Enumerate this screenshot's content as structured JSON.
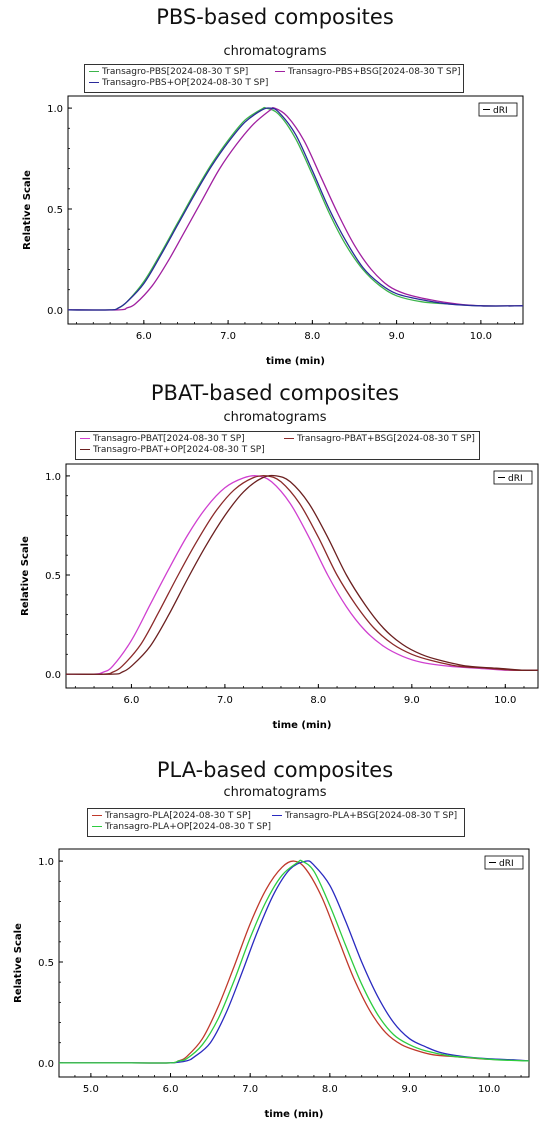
{
  "chart_data": [
    {
      "type": "line",
      "title": "PBS-based composites",
      "subtitle": "chromatograms",
      "xlabel": "time (min)",
      "ylabel": "Relative Scale",
      "xlim": [
        5.1,
        10.5
      ],
      "ylim": [
        0,
        1.0
      ],
      "xticks": [
        "6.0",
        "7.0",
        "8.0",
        "9.0",
        "10.0"
      ],
      "yticks": [
        "0.0",
        "0.5",
        "1.0"
      ],
      "detector_label": "dRI",
      "series": [
        {
          "name": "Transagro-PBS[2024-08-30 T SP]",
          "color": "#3cb44b",
          "x": [
            5.1,
            5.6,
            5.7,
            5.8,
            6.0,
            6.2,
            6.4,
            6.6,
            6.8,
            7.0,
            7.2,
            7.4,
            7.45,
            7.6,
            7.8,
            8.0,
            8.2,
            8.4,
            8.6,
            8.8,
            9.0,
            9.3,
            9.6,
            10.0,
            10.5
          ],
          "y": [
            0.0,
            0.0,
            0.01,
            0.04,
            0.14,
            0.28,
            0.43,
            0.58,
            0.72,
            0.84,
            0.94,
            0.995,
            1.0,
            0.97,
            0.85,
            0.67,
            0.48,
            0.32,
            0.2,
            0.12,
            0.07,
            0.04,
            0.03,
            0.02,
            0.02
          ]
        },
        {
          "name": "Transagro-PBS+BSG[2024-08-30 T SP]",
          "color": "#a020a0",
          "x": [
            5.1,
            5.7,
            5.8,
            5.9,
            6.1,
            6.3,
            6.5,
            6.7,
            6.9,
            7.1,
            7.3,
            7.5,
            7.55,
            7.7,
            7.9,
            8.1,
            8.3,
            8.5,
            8.7,
            8.9,
            9.1,
            9.4,
            9.7,
            10.0,
            10.5
          ],
          "y": [
            0.0,
            0.0,
            0.01,
            0.03,
            0.12,
            0.25,
            0.4,
            0.55,
            0.7,
            0.82,
            0.92,
            0.99,
            1.0,
            0.96,
            0.84,
            0.66,
            0.48,
            0.32,
            0.2,
            0.12,
            0.08,
            0.05,
            0.03,
            0.02,
            0.02
          ]
        },
        {
          "name": "Transagro-PBS+OP[2024-08-30 T SP]",
          "color": "#2a2a9a",
          "x": [
            5.1,
            5.6,
            5.7,
            5.8,
            6.0,
            6.2,
            6.4,
            6.6,
            6.8,
            7.0,
            7.2,
            7.4,
            7.5,
            7.6,
            7.8,
            8.0,
            8.2,
            8.4,
            8.6,
            8.8,
            9.0,
            9.3,
            9.6,
            10.0,
            10.5
          ],
          "y": [
            0.0,
            0.0,
            0.01,
            0.04,
            0.13,
            0.27,
            0.42,
            0.57,
            0.71,
            0.83,
            0.93,
            0.99,
            1.0,
            0.98,
            0.87,
            0.69,
            0.5,
            0.34,
            0.21,
            0.13,
            0.08,
            0.05,
            0.03,
            0.02,
            0.02
          ]
        }
      ]
    },
    {
      "type": "line",
      "title": "PBAT-based composites",
      "subtitle": "chromatograms",
      "xlabel": "time (min)",
      "ylabel": "Relative Scale",
      "xlim": [
        5.3,
        10.35
      ],
      "ylim": [
        0,
        1.0
      ],
      "xticks": [
        "6.0",
        "7.0",
        "8.0",
        "9.0",
        "10.0"
      ],
      "yticks": [
        "0.0",
        "0.5",
        "1.0"
      ],
      "detector_label": "dRI",
      "series": [
        {
          "name": "Transagro-PBAT[2024-08-30 T SP]",
          "color": "#d040d0",
          "x": [
            5.3,
            5.6,
            5.7,
            5.8,
            6.0,
            6.2,
            6.4,
            6.6,
            6.8,
            7.0,
            7.2,
            7.35,
            7.5,
            7.7,
            7.9,
            8.1,
            8.3,
            8.5,
            8.7,
            8.9,
            9.1,
            9.4,
            9.7,
            10.0,
            10.35
          ],
          "y": [
            0.0,
            0.0,
            0.01,
            0.04,
            0.17,
            0.35,
            0.53,
            0.7,
            0.84,
            0.94,
            0.99,
            1.0,
            0.97,
            0.86,
            0.69,
            0.5,
            0.34,
            0.22,
            0.14,
            0.09,
            0.06,
            0.04,
            0.03,
            0.02,
            0.02
          ]
        },
        {
          "name": "Transagro-PBAT+BSG[2024-08-30 T SP]",
          "color": "#8b2a2a",
          "x": [
            5.3,
            5.7,
            5.8,
            5.9,
            6.1,
            6.3,
            6.5,
            6.7,
            6.9,
            7.1,
            7.3,
            7.45,
            7.6,
            7.8,
            8.0,
            8.2,
            8.4,
            8.6,
            8.8,
            9.0,
            9.2,
            9.5,
            9.8,
            10.1,
            10.35
          ],
          "y": [
            0.0,
            0.0,
            0.01,
            0.04,
            0.15,
            0.32,
            0.5,
            0.67,
            0.82,
            0.93,
            0.99,
            1.0,
            0.97,
            0.86,
            0.69,
            0.5,
            0.35,
            0.23,
            0.15,
            0.1,
            0.07,
            0.04,
            0.03,
            0.02,
            0.02
          ]
        },
        {
          "name": "Transagro-PBAT+OP[2024-08-30 T SP]",
          "color": "#6b2020",
          "x": [
            5.3,
            5.8,
            5.9,
            6.0,
            6.2,
            6.4,
            6.6,
            6.8,
            7.0,
            7.2,
            7.4,
            7.55,
            7.7,
            7.9,
            8.1,
            8.3,
            8.5,
            8.7,
            8.9,
            9.1,
            9.3,
            9.6,
            9.9,
            10.2,
            10.35
          ],
          "y": [
            0.0,
            0.0,
            0.01,
            0.04,
            0.14,
            0.3,
            0.48,
            0.65,
            0.8,
            0.92,
            0.99,
            1.0,
            0.97,
            0.86,
            0.69,
            0.5,
            0.35,
            0.23,
            0.15,
            0.1,
            0.07,
            0.04,
            0.03,
            0.02,
            0.02
          ]
        }
      ]
    },
    {
      "type": "line",
      "title": "PLA-based composites",
      "subtitle": "chromatograms",
      "xlabel": "time (min)",
      "ylabel": "Relative Scale",
      "xlim": [
        4.6,
        10.5
      ],
      "ylim": [
        0,
        1.0
      ],
      "xticks": [
        "5.0",
        "6.0",
        "7.0",
        "8.0",
        "9.0",
        "10.0"
      ],
      "yticks": [
        "0.0",
        "0.5",
        "1.0"
      ],
      "detector_label": "dRI",
      "series": [
        {
          "name": "Transagro-PLA[2024-08-30 T SP]",
          "color": "#c0392b",
          "x": [
            4.6,
            5.5,
            6.0,
            6.1,
            6.2,
            6.4,
            6.6,
            6.8,
            7.0,
            7.2,
            7.4,
            7.55,
            7.7,
            7.9,
            8.1,
            8.3,
            8.5,
            8.7,
            8.9,
            9.1,
            9.3,
            9.6,
            9.9,
            10.2,
            10.5
          ],
          "y": [
            0.0,
            0.0,
            0.0,
            0.01,
            0.03,
            0.12,
            0.28,
            0.48,
            0.69,
            0.86,
            0.97,
            1.0,
            0.96,
            0.82,
            0.62,
            0.42,
            0.26,
            0.15,
            0.09,
            0.06,
            0.04,
            0.03,
            0.02,
            0.015,
            0.01
          ]
        },
        {
          "name": "Transagro-PLA+BSG[2024-08-30 T SP]",
          "color": "#2a2ac0",
          "x": [
            4.6,
            5.5,
            6.0,
            6.2,
            6.3,
            6.5,
            6.7,
            6.9,
            7.1,
            7.3,
            7.5,
            7.7,
            7.8,
            8.0,
            8.2,
            8.4,
            8.6,
            8.8,
            9.0,
            9.2,
            9.4,
            9.7,
            10.0,
            10.3,
            10.5
          ],
          "y": [
            0.0,
            0.0,
            0.0,
            0.01,
            0.03,
            0.1,
            0.25,
            0.45,
            0.66,
            0.84,
            0.96,
            1.0,
            0.98,
            0.88,
            0.7,
            0.5,
            0.33,
            0.2,
            0.12,
            0.08,
            0.05,
            0.03,
            0.02,
            0.015,
            0.01
          ]
        },
        {
          "name": "Transagro-PLA+OP[2024-08-30 T SP]",
          "color": "#2ecc40",
          "x": [
            4.6,
            5.5,
            6.0,
            6.1,
            6.2,
            6.4,
            6.6,
            6.8,
            7.0,
            7.2,
            7.4,
            7.6,
            7.65,
            7.8,
            8.0,
            8.2,
            8.4,
            8.6,
            8.8,
            9.0,
            9.2,
            9.5,
            9.8,
            10.1,
            10.5
          ],
          "y": [
            0.0,
            0.0,
            0.0,
            0.01,
            0.02,
            0.09,
            0.22,
            0.41,
            0.62,
            0.8,
            0.93,
            0.995,
            1.0,
            0.95,
            0.78,
            0.58,
            0.39,
            0.24,
            0.14,
            0.09,
            0.06,
            0.035,
            0.025,
            0.015,
            0.01
          ]
        }
      ]
    }
  ]
}
